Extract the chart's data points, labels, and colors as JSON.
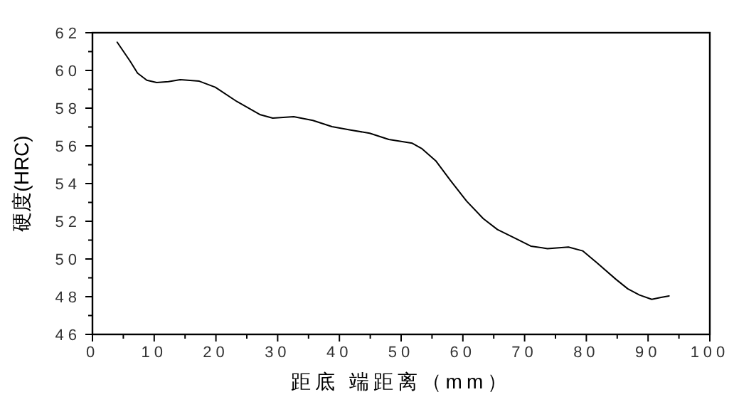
{
  "chart_data": {
    "type": "line",
    "xlabel": "距底 端距离（mm）",
    "ylabel": "硬度(HRC)",
    "xlim": [
      0,
      100
    ],
    "ylim": [
      46,
      62
    ],
    "xticks": [
      0,
      {
        "value": 5,
        "label": null
      },
      10,
      {
        "value": 15,
        "label": null
      },
      20,
      {
        "value": 25,
        "label": null
      },
      30,
      {
        "value": 35,
        "label": null
      },
      40,
      {
        "value": 45,
        "label": null
      },
      50,
      {
        "value": 55,
        "label": null
      },
      60,
      {
        "value": 65,
        "label": null
      },
      70,
      {
        "value": 75,
        "label": null
      },
      80,
      {
        "value": 85,
        "label": null
      },
      90,
      {
        "value": 95,
        "label": null
      },
      100
    ],
    "yticks": [
      46,
      {
        "value": 47,
        "label": null
      },
      48,
      {
        "value": 49,
        "label": null
      },
      50,
      {
        "value": 51,
        "label": null
      },
      52,
      {
        "value": 53,
        "label": null
      },
      54,
      {
        "value": 55,
        "label": null
      },
      56,
      {
        "value": 57,
        "label": null
      },
      58,
      {
        "value": 59,
        "label": null
      },
      60,
      {
        "value": 61,
        "label": null
      },
      62
    ],
    "marker": "none",
    "line_style": "solid",
    "series": [
      {
        "color": "#000000",
        "x": [
          4.0,
          6.1,
          7.3,
          8.8,
          10.4,
          12.3,
          14.2,
          17.3,
          19.9,
          23.4,
          27.2,
          29.2,
          32.6,
          35.7,
          38.8,
          41.8,
          44.9,
          48.0,
          51.8,
          53.4,
          55.6,
          57.9,
          60.6,
          63.3,
          65.6,
          68.7,
          71.0,
          73.7,
          77.1,
          79.4,
          81.7,
          84.8,
          86.7,
          88.6,
          90.6,
          92.1,
          93.4
        ],
        "values": [
          61.5,
          60.49,
          59.86,
          59.48,
          59.36,
          59.41,
          59.51,
          59.43,
          59.11,
          58.35,
          57.65,
          57.47,
          57.55,
          57.35,
          57.02,
          56.84,
          56.67,
          56.34,
          56.14,
          55.84,
          55.21,
          54.2,
          53.07,
          52.14,
          51.56,
          51.06,
          50.68,
          50.55,
          50.63,
          50.43,
          49.8,
          48.92,
          48.42,
          48.09,
          47.86,
          47.96,
          48.04
        ]
      }
    ]
  }
}
